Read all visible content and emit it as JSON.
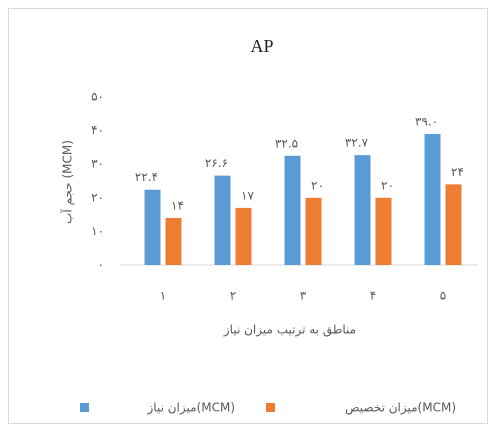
{
  "chart_data": {
    "type": "bar",
    "title": "AP",
    "y_axis_label": "حجم آب (MCM)",
    "x_axis_label": "مناطق به ترتیب میزان نیاز",
    "categories": [
      "۱",
      "۲",
      "۳",
      "۴",
      "۵"
    ],
    "series": [
      {
        "name": "میزان نیاز(MCM)",
        "color": "#5b9bd5",
        "values": [
          22.4,
          26.6,
          32.5,
          32.7,
          39.0
        ],
        "value_labels": [
          "۲۲.۴",
          "۲۶.۶",
          "۳۲.۵",
          "۳۲.۷",
          "۳۹.۰"
        ]
      },
      {
        "name": "میزان تخصیص(MCM)",
        "color": "#ed7d31",
        "values": [
          14,
          17,
          20,
          20,
          24
        ],
        "value_labels": [
          "۱۴",
          "۱۷",
          "۲۰",
          "۲۰",
          "۲۴"
        ]
      }
    ],
    "ylim": [
      0,
      50
    ],
    "yticks": [
      {
        "value": 0,
        "label": "۰"
      },
      {
        "value": 10,
        "label": "۱۰"
      },
      {
        "value": 20,
        "label": "۲۰"
      },
      {
        "value": 30,
        "label": "۳۰"
      },
      {
        "value": 40,
        "label": "۴۰"
      },
      {
        "value": 50,
        "label": "۵۰"
      }
    ],
    "grid": false,
    "legend": "bottom"
  }
}
